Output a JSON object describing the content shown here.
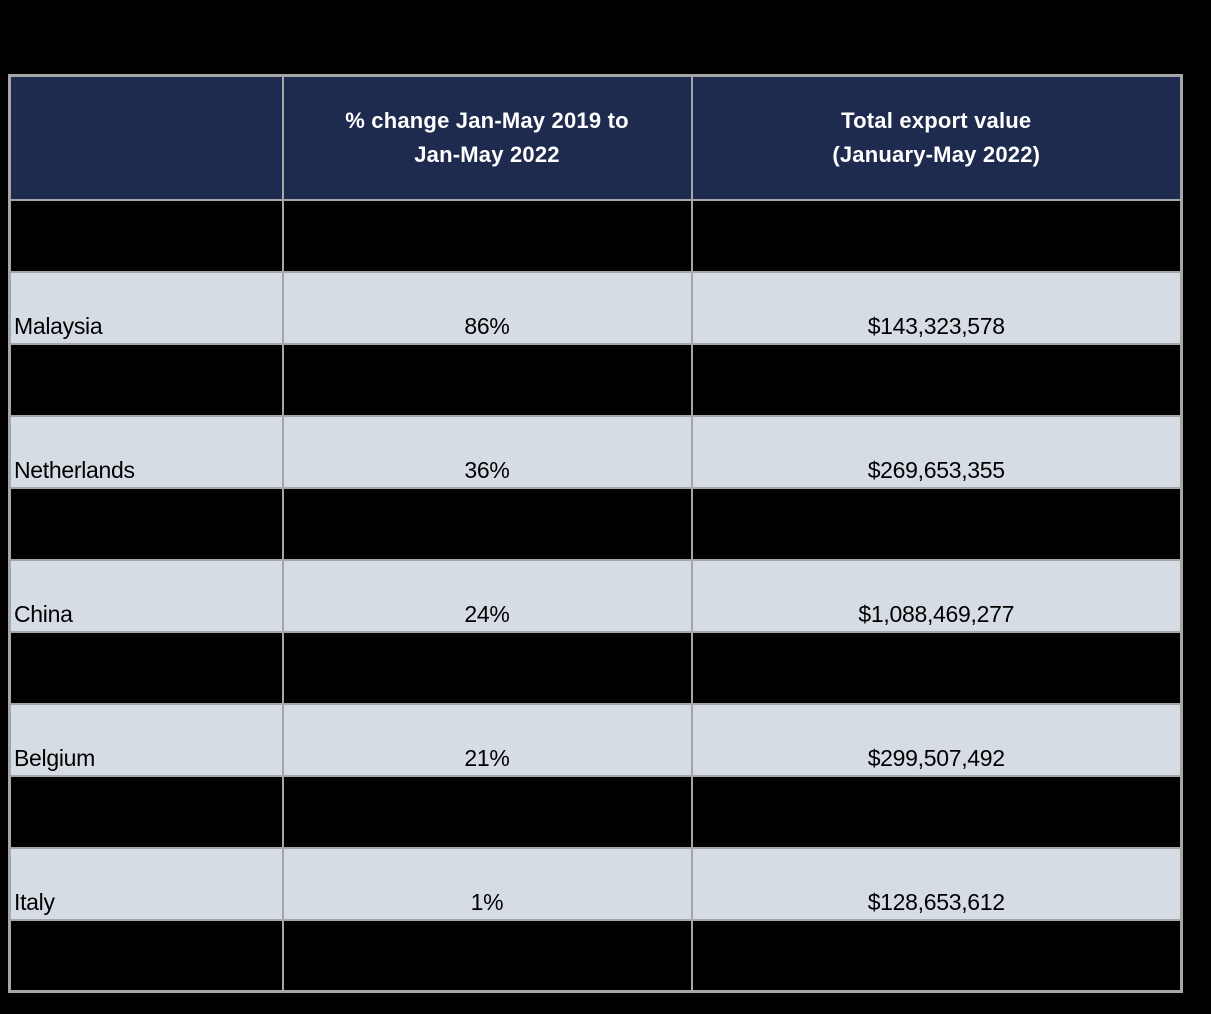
{
  "colors": {
    "page_background": "#000000",
    "header_background": "#1F2A4F",
    "header_text": "#FFFFFF",
    "data_row_background": "#D6DCE4",
    "redacted_row_background": "#000000",
    "border": "#A6A6A6",
    "body_text": "#000000"
  },
  "table": {
    "header": {
      "cells": [
        {
          "text": ""
        },
        {
          "text": "% change Jan-May 2019 to\nJan-May 2022"
        },
        {
          "text": "Total export value\n(January-May 2022)"
        }
      ]
    },
    "rows": [
      {
        "type": "redacted",
        "country": "",
        "pct_change": "",
        "export_value": ""
      },
      {
        "type": "data",
        "country": "Malaysia",
        "pct_change": "86%",
        "export_value": "$143,323,578"
      },
      {
        "type": "redacted",
        "country": "",
        "pct_change": "",
        "export_value": ""
      },
      {
        "type": "data",
        "country": "Netherlands",
        "pct_change": "36%",
        "export_value": "$269,653,355"
      },
      {
        "type": "redacted",
        "country": "",
        "pct_change": "",
        "export_value": ""
      },
      {
        "type": "data",
        "country": "China",
        "pct_change": "24%",
        "export_value": "$1,088,469,277"
      },
      {
        "type": "redacted",
        "country": "",
        "pct_change": "",
        "export_value": ""
      },
      {
        "type": "data",
        "country": "Belgium",
        "pct_change": "21%",
        "export_value": "$299,507,492"
      },
      {
        "type": "redacted",
        "country": "",
        "pct_change": "",
        "export_value": ""
      },
      {
        "type": "data",
        "country": "Italy",
        "pct_change": "1%",
        "export_value": "$128,653,612"
      },
      {
        "type": "redacted",
        "country": "",
        "pct_change": "",
        "export_value": ""
      }
    ]
  },
  "chart_data": {
    "type": "table",
    "columns": [
      "",
      "% change Jan-May 2019 to Jan-May 2022",
      "Total export value (January-May 2022)"
    ],
    "rows": [
      [
        "Malaysia",
        "86%",
        "$143,323,578"
      ],
      [
        "Netherlands",
        "36%",
        "$269,653,355"
      ],
      [
        "China",
        "24%",
        "$1,088,469,277"
      ],
      [
        "Belgium",
        "21%",
        "$299,507,492"
      ],
      [
        "Italy",
        "1%",
        "$128,653,612"
      ]
    ],
    "layout": {
      "redacted_black_rows_between_data_rows": true,
      "first_header_cell_empty": true,
      "background": "black"
    }
  }
}
